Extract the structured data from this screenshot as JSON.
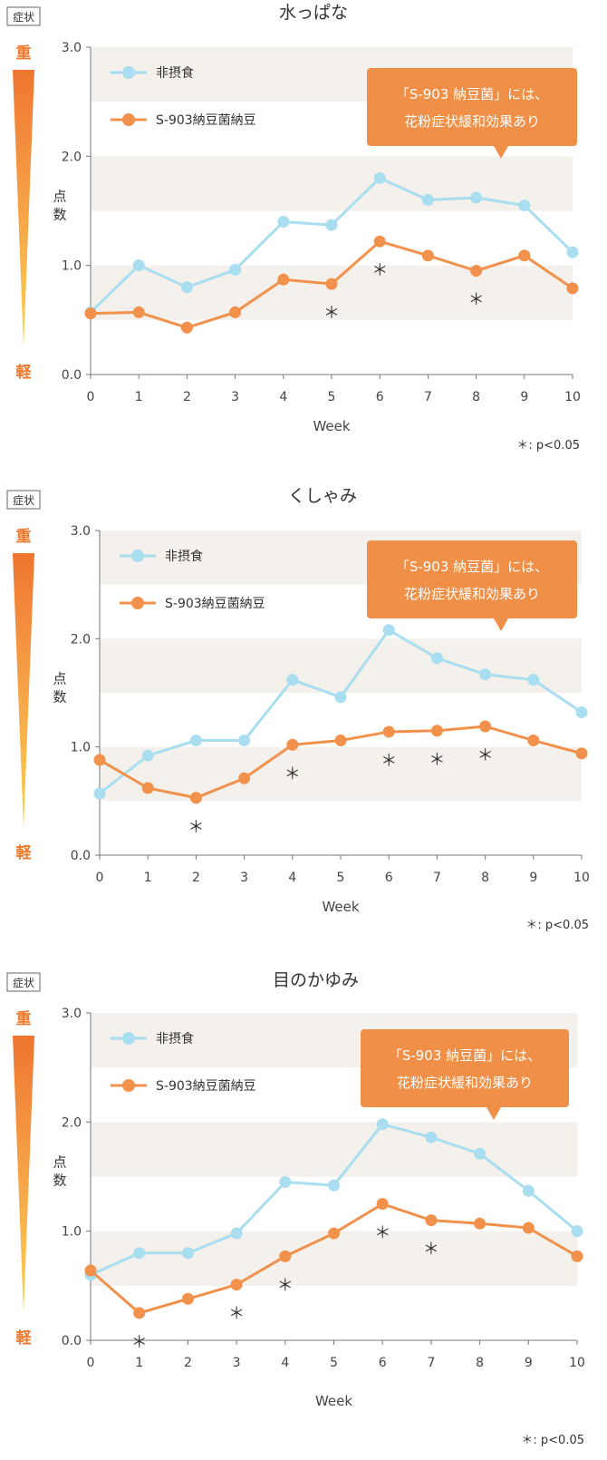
{
  "common": {
    "severity_badge": "症状",
    "severity_high": "重",
    "severity_low": "軽",
    "ylabel_1": "点",
    "ylabel_2": "数",
    "xlabel": "Week",
    "callout_line1": "「S-903 納豆菌」には、",
    "callout_line2": "花粉症状緩和効果あり",
    "significance_note": "＊: p<0.05",
    "colors": {
      "control": "#a9def0",
      "treatment": "#f1914c",
      "band": "#f4f0ec",
      "callout": "#f09048"
    }
  },
  "chart_data": [
    {
      "type": "line",
      "title": "水っぱな",
      "x": [
        0,
        1,
        2,
        3,
        4,
        5,
        6,
        7,
        8,
        9,
        10
      ],
      "xlabel": "Week",
      "ylabel": "点数",
      "ylim": [
        0,
        3.0
      ],
      "yticks": [
        "0.0",
        "1.0",
        "2.0",
        "3.0"
      ],
      "series": [
        {
          "name": "非摂食",
          "values": [
            0.57,
            1.0,
            0.8,
            0.96,
            1.4,
            1.37,
            1.8,
            1.6,
            1.62,
            1.55,
            1.12
          ]
        },
        {
          "name": "S-903納豆菌納豆",
          "values": [
            0.56,
            0.57,
            0.43,
            0.57,
            0.87,
            0.83,
            1.22,
            1.09,
            0.95,
            1.09,
            0.79
          ]
        }
      ],
      "significant_weeks": [
        5,
        6,
        8
      ]
    },
    {
      "type": "line",
      "title": "くしゃみ",
      "x": [
        0,
        1,
        2,
        3,
        4,
        5,
        6,
        7,
        8,
        9,
        10
      ],
      "xlabel": "Week",
      "ylabel": "点数",
      "ylim": [
        0,
        3.0
      ],
      "yticks": [
        "0.0",
        "1.0",
        "2.0",
        "3.0"
      ],
      "series": [
        {
          "name": "非摂食",
          "values": [
            0.57,
            0.92,
            1.06,
            1.06,
            1.62,
            1.46,
            2.08,
            1.82,
            1.67,
            1.62,
            1.32
          ]
        },
        {
          "name": "S-903納豆菌納豆",
          "values": [
            0.88,
            0.62,
            0.53,
            0.71,
            1.02,
            1.06,
            1.14,
            1.15,
            1.19,
            1.06,
            0.94
          ]
        }
      ],
      "significant_weeks": [
        2,
        4,
        6,
        7,
        8
      ]
    },
    {
      "type": "line",
      "title": "目のかゆみ",
      "x": [
        0,
        1,
        2,
        3,
        4,
        5,
        6,
        7,
        8,
        9,
        10
      ],
      "xlabel": "Week",
      "ylabel": "点数",
      "ylim": [
        0,
        3.0
      ],
      "yticks": [
        "0.0",
        "1.0",
        "2.0",
        "3.0"
      ],
      "series": [
        {
          "name": "非摂食",
          "values": [
            0.6,
            0.8,
            0.8,
            0.98,
            1.45,
            1.42,
            1.98,
            1.86,
            1.71,
            1.37,
            1.0
          ]
        },
        {
          "name": "S-903納豆菌納豆",
          "values": [
            0.64,
            0.25,
            0.38,
            0.51,
            0.77,
            0.98,
            1.25,
            1.1,
            1.07,
            1.03,
            0.77
          ]
        }
      ],
      "significant_weeks": [
        1,
        3,
        4,
        6,
        7
      ]
    }
  ]
}
